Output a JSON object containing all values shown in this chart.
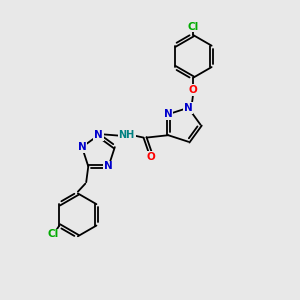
{
  "background_color": "#e8e8e8",
  "bond_color": "#000000",
  "atom_colors": {
    "N": "#0000cc",
    "O": "#ff0000",
    "Cl": "#00aa00",
    "NH": "#008080",
    "C": "#000000"
  },
  "figsize": [
    3.0,
    3.0
  ],
  "dpi": 100,
  "xlim": [
    0,
    10
  ],
  "ylim": [
    0,
    10
  ]
}
